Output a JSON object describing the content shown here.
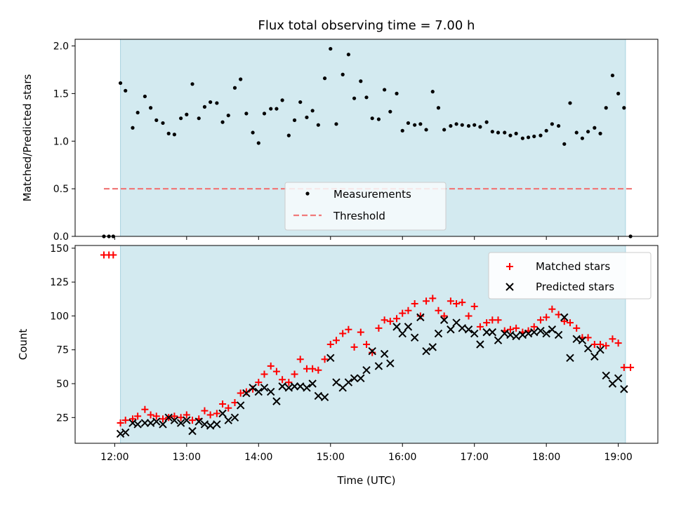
{
  "figure_title": "Flux total observing time = 7.00 h",
  "chart_data": [
    {
      "type": "scatter",
      "ylabel": "Matched/Predicted stars",
      "ylim": [
        0,
        2.07
      ],
      "yticks": [
        0.0,
        0.5,
        1.0,
        1.5,
        2.0
      ],
      "ytick_labels": [
        "0.0",
        "0.5",
        "1.0",
        "1.5",
        "2.0"
      ],
      "xlim_hours": [
        11.45,
        19.55
      ],
      "observing_window_hours": [
        12.08,
        19.1
      ],
      "threshold": {
        "name": "Threshold",
        "value": 0.5,
        "x_range_hours": [
          11.85,
          19.2
        ],
        "color": "#f07a7a"
      },
      "legend_position": "lower-center",
      "series": [
        {
          "name": "Measurements",
          "color": "#000000",
          "x": [
            11.85,
            11.92,
            11.98,
            12.08,
            12.15,
            12.25,
            12.32,
            12.42,
            12.5,
            12.58,
            12.67,
            12.75,
            12.83,
            12.92,
            13.0,
            13.08,
            13.17,
            13.25,
            13.33,
            13.42,
            13.5,
            13.58,
            13.67,
            13.75,
            13.83,
            13.92,
            14.0,
            14.08,
            14.17,
            14.25,
            14.33,
            14.42,
            14.5,
            14.58,
            14.67,
            14.75,
            14.83,
            14.92,
            15.0,
            15.08,
            15.17,
            15.25,
            15.33,
            15.42,
            15.5,
            15.58,
            15.67,
            15.75,
            15.83,
            15.92,
            16.0,
            16.08,
            16.17,
            16.25,
            16.33,
            16.42,
            16.5,
            16.58,
            16.67,
            16.75,
            16.83,
            16.92,
            17.0,
            17.08,
            17.17,
            17.25,
            17.33,
            17.42,
            17.5,
            17.58,
            17.67,
            17.75,
            17.83,
            17.92,
            18.0,
            18.08,
            18.17,
            18.25,
            18.33,
            18.42,
            18.5,
            18.58,
            18.67,
            18.75,
            18.83,
            18.92,
            19.0,
            19.08,
            19.17
          ],
          "y": [
            0.0,
            0.0,
            0.0,
            1.61,
            1.53,
            1.14,
            1.3,
            1.47,
            1.35,
            1.22,
            1.19,
            1.08,
            1.07,
            1.24,
            1.28,
            1.6,
            1.24,
            1.36,
            1.41,
            1.4,
            1.2,
            1.27,
            1.56,
            1.65,
            1.29,
            1.09,
            0.98,
            1.29,
            1.34,
            1.34,
            1.43,
            1.06,
            1.22,
            1.41,
            1.25,
            1.32,
            1.17,
            1.66,
            1.97,
            1.18,
            1.7,
            1.91,
            1.45,
            1.63,
            1.46,
            1.24,
            1.23,
            1.54,
            1.31,
            1.5,
            1.11,
            1.19,
            1.17,
            1.18,
            1.12,
            1.52,
            1.35,
            1.12,
            1.16,
            1.18,
            1.17,
            1.16,
            1.17,
            1.15,
            1.2,
            1.1,
            1.09,
            1.09,
            1.06,
            1.08,
            1.03,
            1.04,
            1.05,
            1.06,
            1.11,
            1.18,
            1.16,
            0.97,
            1.4,
            1.09,
            1.03,
            1.1,
            1.14,
            1.08,
            1.35,
            1.69,
            1.5,
            1.35,
            0.0
          ]
        }
      ]
    },
    {
      "type": "scatter",
      "xlabel": "Time (UTC)",
      "ylabel": "Count",
      "ylim": [
        6,
        152
      ],
      "yticks": [
        25,
        50,
        75,
        100,
        125,
        150
      ],
      "ytick_labels": [
        "25",
        "50",
        "75",
        "100",
        "125",
        "150"
      ],
      "xlim_hours": [
        11.45,
        19.55
      ],
      "xticks_hours": [
        12,
        13,
        14,
        15,
        16,
        17,
        18,
        19
      ],
      "xtick_labels": [
        "12:00",
        "13:00",
        "14:00",
        "15:00",
        "16:00",
        "17:00",
        "18:00",
        "19:00"
      ],
      "observing_window_hours": [
        12.08,
        19.1
      ],
      "legend_position": "upper-right",
      "series": [
        {
          "name": "Matched stars",
          "marker": "+",
          "color": "#ff0000",
          "x": [
            11.85,
            11.92,
            11.98,
            12.08,
            12.15,
            12.25,
            12.32,
            12.42,
            12.5,
            12.58,
            12.67,
            12.75,
            12.83,
            12.92,
            13.0,
            13.08,
            13.17,
            13.25,
            13.33,
            13.42,
            13.5,
            13.58,
            13.67,
            13.75,
            13.83,
            13.92,
            14.0,
            14.08,
            14.17,
            14.25,
            14.33,
            14.42,
            14.5,
            14.58,
            14.67,
            14.75,
            14.83,
            14.92,
            15.0,
            15.08,
            15.17,
            15.25,
            15.33,
            15.42,
            15.5,
            15.58,
            15.67,
            15.75,
            15.83,
            15.92,
            16.0,
            16.08,
            16.17,
            16.25,
            16.33,
            16.42,
            16.5,
            16.58,
            16.67,
            16.75,
            16.83,
            16.92,
            17.0,
            17.08,
            17.17,
            17.25,
            17.33,
            17.42,
            17.5,
            17.58,
            17.67,
            17.75,
            17.83,
            17.92,
            18.0,
            18.08,
            18.17,
            18.25,
            18.33,
            18.42,
            18.5,
            18.58,
            18.67,
            18.75,
            18.83,
            18.92,
            19.0,
            19.08,
            19.17
          ],
          "y": [
            145,
            145,
            145,
            21,
            23,
            24,
            26,
            31,
            27,
            26,
            24,
            25,
            26,
            25,
            27,
            23,
            24,
            30,
            27,
            28,
            35,
            32,
            36,
            43,
            44,
            46,
            51,
            57,
            63,
            59,
            53,
            51,
            57,
            68,
            61,
            61,
            60,
            68,
            79,
            82,
            87,
            90,
            77,
            88,
            79,
            73,
            91,
            97,
            96,
            98,
            102,
            104,
            109,
            100,
            111,
            113,
            104,
            100,
            111,
            109,
            110,
            100,
            107,
            92,
            95,
            97,
            97,
            89,
            90,
            91,
            88,
            89,
            92,
            97,
            99,
            105,
            101,
            96,
            95,
            91,
            84,
            84,
            79,
            79,
            78,
            83,
            80,
            62,
            62
          ]
        },
        {
          "name": "Predicted stars",
          "marker": "x",
          "color": "#000000",
          "x": [
            12.08,
            12.15,
            12.25,
            12.32,
            12.42,
            12.5,
            12.58,
            12.67,
            12.75,
            12.83,
            12.92,
            13.0,
            13.08,
            13.17,
            13.25,
            13.33,
            13.42,
            13.5,
            13.58,
            13.67,
            13.75,
            13.83,
            13.92,
            14.0,
            14.08,
            14.17,
            14.25,
            14.33,
            14.42,
            14.5,
            14.58,
            14.67,
            14.75,
            14.83,
            14.92,
            15.0,
            15.08,
            15.17,
            15.25,
            15.33,
            15.42,
            15.5,
            15.58,
            15.67,
            15.75,
            15.83,
            15.92,
            16.0,
            16.08,
            16.17,
            16.25,
            16.33,
            16.42,
            16.5,
            16.58,
            16.67,
            16.75,
            16.83,
            16.92,
            17.0,
            17.08,
            17.17,
            17.25,
            17.33,
            17.42,
            17.5,
            17.58,
            17.67,
            17.75,
            17.83,
            17.92,
            18.0,
            18.08,
            18.17,
            18.25,
            18.33,
            18.42,
            18.5,
            18.58,
            18.67,
            18.75,
            18.83,
            18.92,
            19.0,
            19.08
          ],
          "y": [
            13,
            14,
            21,
            20,
            21,
            21,
            22,
            20,
            25,
            23,
            21,
            23,
            15,
            22,
            20,
            19,
            20,
            28,
            23,
            25,
            34,
            43,
            47,
            44,
            47,
            44,
            37,
            48,
            47,
            48,
            48,
            47,
            50,
            41,
            40,
            69,
            51,
            47,
            51,
            54,
            54,
            60,
            74,
            63,
            72,
            65,
            92,
            87,
            92,
            84,
            99,
            74,
            77,
            87,
            97,
            90,
            95,
            91,
            90,
            87,
            79,
            88,
            88,
            82,
            87,
            86,
            85,
            86,
            87,
            88,
            89,
            87,
            90,
            86,
            99,
            69,
            83,
            82,
            76,
            70,
            75,
            56,
            50,
            54,
            46
          ]
        }
      ]
    }
  ]
}
